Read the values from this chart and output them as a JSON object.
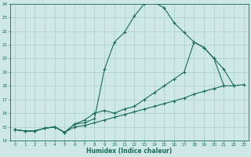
{
  "xlabel": "Humidex (Indice chaleur)",
  "bg_color": "#cde8e5",
  "grid_color": "#aacfcc",
  "line_color": "#1a6b5a",
  "xlim": [
    -0.5,
    23.5
  ],
  "ylim": [
    14,
    24
  ],
  "xticks": [
    0,
    1,
    2,
    3,
    4,
    5,
    6,
    7,
    8,
    9,
    10,
    11,
    12,
    13,
    14,
    15,
    16,
    17,
    18,
    19,
    20,
    21,
    22,
    23
  ],
  "yticks": [
    14,
    15,
    16,
    17,
    18,
    19,
    20,
    21,
    22,
    23,
    24
  ],
  "line1_x": [
    0,
    1,
    2,
    3,
    4,
    5,
    6,
    7,
    8,
    9,
    10,
    11,
    12,
    13,
    14,
    15,
    16,
    17,
    18,
    19,
    20,
    21,
    22
  ],
  "line1_y": [
    14.8,
    14.7,
    14.7,
    14.9,
    15.0,
    14.6,
    15.2,
    15.3,
    15.6,
    19.2,
    21.2,
    21.9,
    23.1,
    24.0,
    24.1,
    23.7,
    22.6,
    21.9,
    21.2,
    20.8,
    20.0,
    19.2,
    18.0
  ],
  "line2_x": [
    0,
    1,
    2,
    3,
    4,
    5,
    6,
    7,
    8,
    9,
    10,
    11,
    12,
    13,
    14,
    15,
    16,
    17,
    18,
    19,
    20,
    21
  ],
  "line2_y": [
    14.8,
    14.7,
    14.7,
    14.9,
    15.0,
    14.6,
    15.2,
    15.5,
    16.0,
    16.2,
    16.0,
    16.3,
    16.5,
    17.0,
    17.5,
    18.0,
    18.5,
    19.0,
    21.2,
    20.8,
    20.0,
    18.0
  ],
  "line3_x": [
    0,
    1,
    2,
    3,
    4,
    5,
    6,
    7,
    8,
    9,
    10,
    11,
    12,
    13,
    14,
    15,
    16,
    17,
    18,
    19,
    20,
    21,
    22,
    23
  ],
  "line3_y": [
    14.8,
    14.7,
    14.7,
    14.9,
    15.0,
    14.6,
    15.0,
    15.1,
    15.3,
    15.5,
    15.7,
    15.9,
    16.1,
    16.3,
    16.5,
    16.7,
    16.9,
    17.1,
    17.4,
    17.6,
    17.8,
    18.0,
    18.0,
    18.1
  ]
}
